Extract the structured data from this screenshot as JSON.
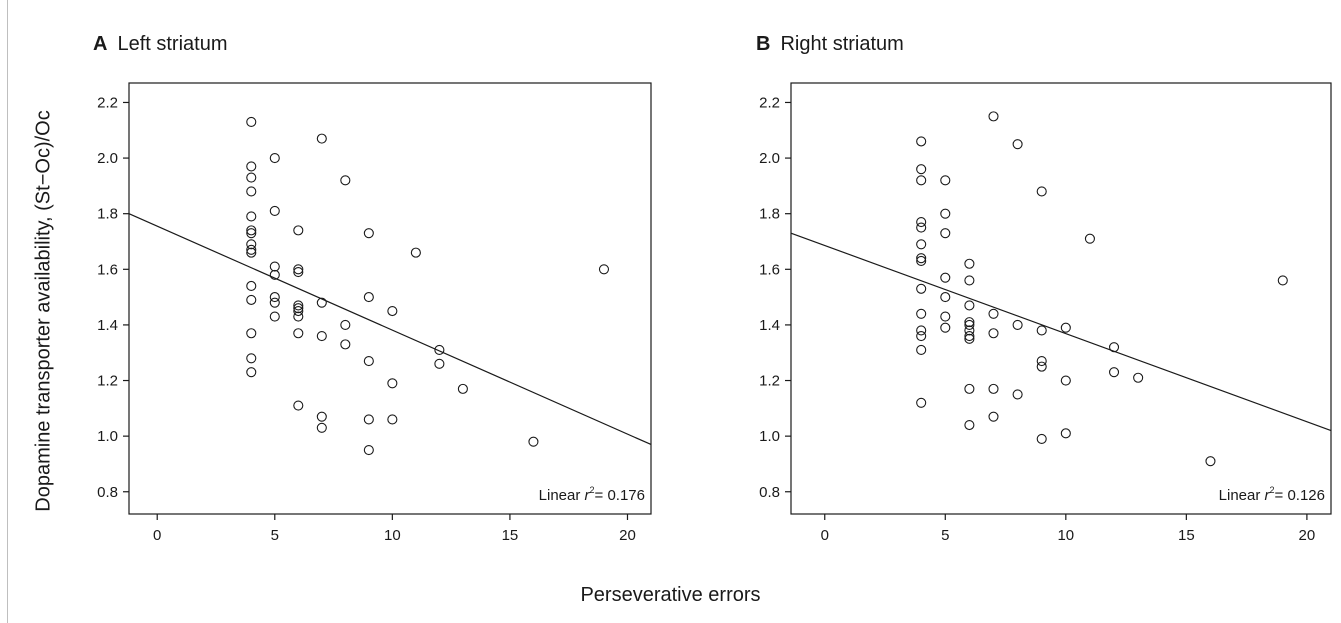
{
  "ylabel": "Dopamine transporter availability, (St−Oc)/Oc",
  "xlabel": "Perseverative errors",
  "chart_data": [
    {
      "type": "scatter",
      "panel_letter": "A",
      "title": "Left striatum",
      "annotation": {
        "prefix": "Linear ",
        "r": "r",
        "sup": "2",
        "suffix": "= 0.176"
      },
      "xlim": [
        -1.2,
        21.0
      ],
      "ylim": [
        0.72,
        2.27
      ],
      "xticks": [
        0,
        5,
        10,
        15,
        20
      ],
      "yticks": [
        0.8,
        1.0,
        1.2,
        1.4,
        1.6,
        1.8,
        2.0,
        2.2
      ],
      "fit_line": {
        "x": [
          -1.2,
          21.0
        ],
        "y": [
          1.8,
          0.97
        ]
      },
      "points": [
        [
          4,
          2.13
        ],
        [
          4,
          1.97
        ],
        [
          4,
          1.93
        ],
        [
          4,
          1.88
        ],
        [
          4,
          1.79
        ],
        [
          4,
          1.74
        ],
        [
          4,
          1.73
        ],
        [
          4,
          1.69
        ],
        [
          4,
          1.67
        ],
        [
          4,
          1.66
        ],
        [
          4,
          1.54
        ],
        [
          4,
          1.49
        ],
        [
          4,
          1.37
        ],
        [
          4,
          1.28
        ],
        [
          4,
          1.23
        ],
        [
          5,
          2.0
        ],
        [
          5,
          1.81
        ],
        [
          5,
          1.61
        ],
        [
          5,
          1.58
        ],
        [
          5,
          1.5
        ],
        [
          5,
          1.48
        ],
        [
          5,
          1.43
        ],
        [
          6,
          1.74
        ],
        [
          6,
          1.6
        ],
        [
          6,
          1.59
        ],
        [
          6,
          1.47
        ],
        [
          6,
          1.46
        ],
        [
          6,
          1.45
        ],
        [
          6,
          1.43
        ],
        [
          6,
          1.37
        ],
        [
          6,
          1.11
        ],
        [
          7,
          2.07
        ],
        [
          7,
          1.48
        ],
        [
          7,
          1.36
        ],
        [
          7,
          1.07
        ],
        [
          7,
          1.03
        ],
        [
          8,
          1.92
        ],
        [
          8,
          1.4
        ],
        [
          8,
          1.33
        ],
        [
          9,
          1.73
        ],
        [
          9,
          1.5
        ],
        [
          9,
          1.27
        ],
        [
          9,
          1.06
        ],
        [
          9,
          0.95
        ],
        [
          10,
          1.45
        ],
        [
          10,
          1.19
        ],
        [
          10,
          1.06
        ],
        [
          11,
          1.66
        ],
        [
          12,
          1.31
        ],
        [
          12,
          1.26
        ],
        [
          13,
          1.17
        ],
        [
          16,
          0.98
        ],
        [
          19,
          1.6
        ]
      ]
    },
    {
      "type": "scatter",
      "panel_letter": "B",
      "title": "Right striatum",
      "annotation": {
        "prefix": "Linear ",
        "r": "r",
        "sup": "2",
        "suffix": "= 0.126"
      },
      "xlim": [
        -1.4,
        21.0
      ],
      "ylim": [
        0.72,
        2.27
      ],
      "xticks": [
        0,
        5,
        10,
        15,
        20
      ],
      "yticks": [
        0.8,
        1.0,
        1.2,
        1.4,
        1.6,
        1.8,
        2.0,
        2.2
      ],
      "fit_line": {
        "x": [
          -1.4,
          21.0
        ],
        "y": [
          1.73,
          1.02
        ]
      },
      "points": [
        [
          4,
          2.06
        ],
        [
          4,
          1.96
        ],
        [
          4,
          1.92
        ],
        [
          4,
          1.77
        ],
        [
          4,
          1.75
        ],
        [
          4,
          1.69
        ],
        [
          4,
          1.64
        ],
        [
          4,
          1.63
        ],
        [
          4,
          1.53
        ],
        [
          4,
          1.44
        ],
        [
          4,
          1.38
        ],
        [
          4,
          1.36
        ],
        [
          4,
          1.31
        ],
        [
          4,
          1.12
        ],
        [
          5,
          1.92
        ],
        [
          5,
          1.8
        ],
        [
          5,
          1.73
        ],
        [
          5,
          1.57
        ],
        [
          5,
          1.5
        ],
        [
          5,
          1.43
        ],
        [
          5,
          1.39
        ],
        [
          6,
          1.62
        ],
        [
          6,
          1.56
        ],
        [
          6,
          1.47
        ],
        [
          6,
          1.41
        ],
        [
          6,
          1.4
        ],
        [
          6,
          1.38
        ],
        [
          6,
          1.36
        ],
        [
          6,
          1.35
        ],
        [
          6,
          1.17
        ],
        [
          6,
          1.04
        ],
        [
          7,
          2.15
        ],
        [
          7,
          1.44
        ],
        [
          7,
          1.37
        ],
        [
          7,
          1.17
        ],
        [
          7,
          1.07
        ],
        [
          8,
          2.05
        ],
        [
          8,
          1.4
        ],
        [
          8,
          1.15
        ],
        [
          9,
          1.88
        ],
        [
          9,
          1.38
        ],
        [
          9,
          1.27
        ],
        [
          9,
          1.25
        ],
        [
          9,
          0.99
        ],
        [
          10,
          1.39
        ],
        [
          10,
          1.2
        ],
        [
          10,
          1.01
        ],
        [
          11,
          1.71
        ],
        [
          12,
          1.32
        ],
        [
          12,
          1.23
        ],
        [
          13,
          1.21
        ],
        [
          16,
          0.91
        ],
        [
          19,
          1.56
        ]
      ]
    }
  ]
}
